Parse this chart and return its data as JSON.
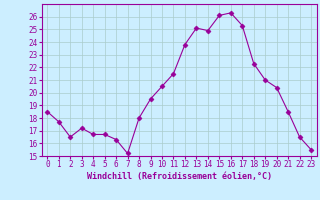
{
  "x": [
    0,
    1,
    2,
    3,
    4,
    5,
    6,
    7,
    8,
    9,
    10,
    11,
    12,
    13,
    14,
    15,
    16,
    17,
    18,
    19,
    20,
    21,
    22,
    23
  ],
  "y": [
    18.5,
    17.7,
    16.5,
    17.2,
    16.7,
    16.7,
    16.3,
    15.2,
    18.0,
    19.5,
    20.5,
    21.5,
    23.8,
    25.1,
    24.9,
    26.1,
    26.3,
    25.3,
    22.3,
    21.0,
    20.4,
    18.5,
    16.5,
    15.5
  ],
  "line_color": "#990099",
  "marker": "D",
  "marker_size": 2.5,
  "bg_color": "#cceeff",
  "grid_color": "#aacccc",
  "xlabel": "Windchill (Refroidissement éolien,°C)",
  "xlim": [
    -0.5,
    23.5
  ],
  "ylim": [
    15,
    27
  ],
  "yticks": [
    15,
    16,
    17,
    18,
    19,
    20,
    21,
    22,
    23,
    24,
    25,
    26
  ],
  "xticks": [
    0,
    1,
    2,
    3,
    4,
    5,
    6,
    7,
    8,
    9,
    10,
    11,
    12,
    13,
    14,
    15,
    16,
    17,
    18,
    19,
    20,
    21,
    22,
    23
  ],
  "tick_label_fontsize": 5.5,
  "xlabel_fontsize": 6.0,
  "tick_color": "#990099",
  "label_color": "#990099"
}
